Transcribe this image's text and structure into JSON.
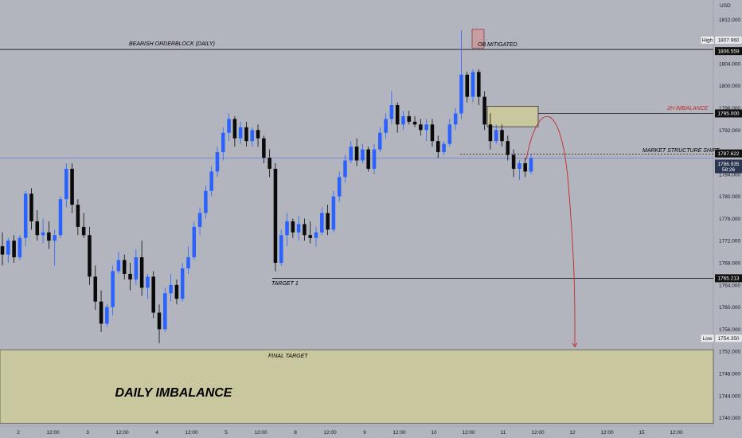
{
  "chart_data": {
    "type": "candlestick",
    "currency": "USD",
    "ylim": [
      1738.5,
      1815.5
    ],
    "y_ticks": [
      1812.0,
      1808.0,
      1804.0,
      1800.0,
      1796.0,
      1792.0,
      1788.0,
      1784.0,
      1780.0,
      1776.0,
      1772.0,
      1768.0,
      1764.0,
      1760.0,
      1756.0,
      1752.0,
      1748.0,
      1744.0,
      1740.0
    ],
    "x_tick_labels": [
      "2",
      "12:00",
      "3",
      "12:00",
      "4",
      "12:00",
      "5",
      "12:00",
      "8",
      "12:00",
      "9",
      "12:00",
      "10",
      "12:00",
      "11",
      "12:00",
      "12",
      "12:00",
      "15",
      "12:00"
    ],
    "price_labels": [
      {
        "tag": "High",
        "value": "1807.960"
      },
      {
        "tag": "",
        "value": "1806.559"
      },
      {
        "tag": "",
        "value": "1795.000"
      },
      {
        "tag": "",
        "value": "1787.622"
      },
      {
        "tag": "",
        "value": "1786.935",
        "sub": "58:26"
      },
      {
        "tag": "",
        "value": "1765.213"
      },
      {
        "tag": "Low",
        "value": "1754.350"
      }
    ],
    "annotations": {
      "bearish_ob": "BEARISH ORDERBLOCK (DAILY)",
      "ob_mitigated": "OB MITIGATED",
      "imbalance_2h": "2H IMBALANCE",
      "mss": "MARKET STRUCTURE SHIFT",
      "target1": "TARGET 1",
      "final_target": "FINAL TARGET",
      "daily_imbalance": "DAILY IMBALANCE"
    },
    "levels": {
      "bearish_ob": 1806.559,
      "imbalance_2h": 1795.0,
      "mss": 1787.622,
      "current": 1786.935,
      "target1": 1765.213,
      "final_target": 1752.3
    },
    "zones": {
      "daily_imbalance": [
        1739.0,
        1752.3
      ],
      "imbalance_2h": [
        1792.6,
        1796.3
      ],
      "ob_mitigated": [
        1806.8,
        1810.2
      ]
    },
    "projection_end": 1752.8,
    "series": [
      {
        "open": 1771.0,
        "high": 1773.5,
        "low": 1767.5,
        "close": 1769.5
      },
      {
        "open": 1769.5,
        "high": 1772.5,
        "low": 1768.0,
        "close": 1772.0
      },
      {
        "open": 1772.0,
        "high": 1773.0,
        "low": 1768.0,
        "close": 1769.0
      },
      {
        "open": 1769.0,
        "high": 1773.0,
        "low": 1768.5,
        "close": 1772.5
      },
      {
        "open": 1772.5,
        "high": 1781.0,
        "low": 1771.0,
        "close": 1780.5
      },
      {
        "open": 1780.5,
        "high": 1781.5,
        "low": 1774.0,
        "close": 1775.5
      },
      {
        "open": 1775.5,
        "high": 1777.5,
        "low": 1772.0,
        "close": 1773.0
      },
      {
        "open": 1773.0,
        "high": 1776.0,
        "low": 1771.5,
        "close": 1773.5
      },
      {
        "open": 1773.5,
        "high": 1775.5,
        "low": 1770.5,
        "close": 1772.0
      },
      {
        "open": 1772.0,
        "high": 1774.0,
        "low": 1767.5,
        "close": 1773.0
      },
      {
        "open": 1773.0,
        "high": 1780.0,
        "low": 1772.5,
        "close": 1779.5
      },
      {
        "open": 1779.5,
        "high": 1786.0,
        "low": 1778.0,
        "close": 1785.0
      },
      {
        "open": 1785.0,
        "high": 1786.0,
        "low": 1777.0,
        "close": 1778.5
      },
      {
        "open": 1778.5,
        "high": 1779.5,
        "low": 1773.0,
        "close": 1774.5
      },
      {
        "open": 1774.5,
        "high": 1777.0,
        "low": 1772.5,
        "close": 1773.0
      },
      {
        "open": 1773.0,
        "high": 1774.5,
        "low": 1764.0,
        "close": 1765.5
      },
      {
        "open": 1765.5,
        "high": 1767.5,
        "low": 1759.5,
        "close": 1761.0
      },
      {
        "open": 1761.0,
        "high": 1763.0,
        "low": 1755.5,
        "close": 1757.0
      },
      {
        "open": 1757.0,
        "high": 1760.5,
        "low": 1756.5,
        "close": 1760.0
      },
      {
        "open": 1760.0,
        "high": 1767.5,
        "low": 1758.5,
        "close": 1766.5
      },
      {
        "open": 1766.5,
        "high": 1770.0,
        "low": 1766.0,
        "close": 1768.5
      },
      {
        "open": 1768.5,
        "high": 1769.5,
        "low": 1765.0,
        "close": 1766.0
      },
      {
        "open": 1766.0,
        "high": 1768.0,
        "low": 1763.0,
        "close": 1765.0
      },
      {
        "open": 1765.0,
        "high": 1770.5,
        "low": 1764.0,
        "close": 1769.0
      },
      {
        "open": 1769.0,
        "high": 1772.0,
        "low": 1762.0,
        "close": 1763.5
      },
      {
        "open": 1763.5,
        "high": 1766.0,
        "low": 1761.5,
        "close": 1765.5
      },
      {
        "open": 1765.5,
        "high": 1766.5,
        "low": 1758.0,
        "close": 1759.0
      },
      {
        "open": 1759.0,
        "high": 1760.5,
        "low": 1753.5,
        "close": 1756.0
      },
      {
        "open": 1756.0,
        "high": 1763.5,
        "low": 1755.5,
        "close": 1762.5
      },
      {
        "open": 1762.5,
        "high": 1766.0,
        "low": 1761.0,
        "close": 1764.0
      },
      {
        "open": 1764.0,
        "high": 1765.0,
        "low": 1760.5,
        "close": 1761.5
      },
      {
        "open": 1761.5,
        "high": 1768.0,
        "low": 1761.0,
        "close": 1767.0
      },
      {
        "open": 1767.0,
        "high": 1771.0,
        "low": 1766.0,
        "close": 1769.0
      },
      {
        "open": 1769.0,
        "high": 1775.5,
        "low": 1768.5,
        "close": 1774.5
      },
      {
        "open": 1774.5,
        "high": 1778.0,
        "low": 1773.0,
        "close": 1777.0
      },
      {
        "open": 1777.0,
        "high": 1782.0,
        "low": 1776.0,
        "close": 1781.0
      },
      {
        "open": 1781.0,
        "high": 1785.5,
        "low": 1780.0,
        "close": 1784.5
      },
      {
        "open": 1784.5,
        "high": 1789.0,
        "low": 1783.5,
        "close": 1788.0
      },
      {
        "open": 1788.0,
        "high": 1792.5,
        "low": 1786.5,
        "close": 1791.5
      },
      {
        "open": 1791.5,
        "high": 1795.0,
        "low": 1790.0,
        "close": 1794.0
      },
      {
        "open": 1794.0,
        "high": 1794.5,
        "low": 1789.0,
        "close": 1790.5
      },
      {
        "open": 1790.5,
        "high": 1793.5,
        "low": 1789.5,
        "close": 1792.5
      },
      {
        "open": 1792.5,
        "high": 1793.5,
        "low": 1789.0,
        "close": 1790.0
      },
      {
        "open": 1790.0,
        "high": 1792.5,
        "low": 1789.0,
        "close": 1792.0
      },
      {
        "open": 1792.0,
        "high": 1793.0,
        "low": 1789.0,
        "close": 1790.5
      },
      {
        "open": 1790.5,
        "high": 1791.0,
        "low": 1786.0,
        "close": 1787.0
      },
      {
        "open": 1787.0,
        "high": 1788.5,
        "low": 1783.5,
        "close": 1785.0
      },
      {
        "open": 1785.0,
        "high": 1786.0,
        "low": 1766.5,
        "close": 1768.0
      },
      {
        "open": 1768.0,
        "high": 1774.0,
        "low": 1767.5,
        "close": 1773.0
      },
      {
        "open": 1773.0,
        "high": 1777.0,
        "low": 1771.0,
        "close": 1775.5
      },
      {
        "open": 1775.5,
        "high": 1776.0,
        "low": 1772.5,
        "close": 1773.5
      },
      {
        "open": 1773.5,
        "high": 1776.5,
        "low": 1772.0,
        "close": 1775.0
      },
      {
        "open": 1775.0,
        "high": 1776.0,
        "low": 1772.0,
        "close": 1773.0
      },
      {
        "open": 1773.0,
        "high": 1775.5,
        "low": 1771.5,
        "close": 1772.5
      },
      {
        "open": 1772.5,
        "high": 1774.5,
        "low": 1771.0,
        "close": 1773.5
      },
      {
        "open": 1773.5,
        "high": 1778.0,
        "low": 1773.0,
        "close": 1777.0
      },
      {
        "open": 1777.0,
        "high": 1778.5,
        "low": 1773.0,
        "close": 1774.0
      },
      {
        "open": 1774.0,
        "high": 1781.0,
        "low": 1773.5,
        "close": 1780.0
      },
      {
        "open": 1780.0,
        "high": 1784.5,
        "low": 1779.0,
        "close": 1783.5
      },
      {
        "open": 1783.5,
        "high": 1787.5,
        "low": 1782.5,
        "close": 1786.5
      },
      {
        "open": 1786.5,
        "high": 1790.0,
        "low": 1786.0,
        "close": 1789.0
      },
      {
        "open": 1789.0,
        "high": 1790.5,
        "low": 1785.5,
        "close": 1786.5
      },
      {
        "open": 1786.5,
        "high": 1789.5,
        "low": 1786.0,
        "close": 1788.5
      },
      {
        "open": 1788.5,
        "high": 1789.0,
        "low": 1784.5,
        "close": 1785.0
      },
      {
        "open": 1785.0,
        "high": 1789.5,
        "low": 1784.0,
        "close": 1788.5
      },
      {
        "open": 1788.5,
        "high": 1792.5,
        "low": 1788.0,
        "close": 1791.5
      },
      {
        "open": 1791.5,
        "high": 1795.0,
        "low": 1790.5,
        "close": 1794.0
      },
      {
        "open": 1794.0,
        "high": 1799.0,
        "low": 1793.0,
        "close": 1796.5
      },
      {
        "open": 1796.5,
        "high": 1797.0,
        "low": 1791.5,
        "close": 1793.0
      },
      {
        "open": 1793.0,
        "high": 1795.5,
        "low": 1792.0,
        "close": 1794.5
      },
      {
        "open": 1794.5,
        "high": 1795.5,
        "low": 1793.0,
        "close": 1793.5
      },
      {
        "open": 1793.5,
        "high": 1794.5,
        "low": 1792.5,
        "close": 1793.0
      },
      {
        "open": 1793.0,
        "high": 1794.0,
        "low": 1791.0,
        "close": 1792.0
      },
      {
        "open": 1792.0,
        "high": 1794.0,
        "low": 1790.0,
        "close": 1793.0
      },
      {
        "open": 1793.0,
        "high": 1794.0,
        "low": 1789.0,
        "close": 1790.0
      },
      {
        "open": 1790.0,
        "high": 1791.0,
        "low": 1787.0,
        "close": 1788.0
      },
      {
        "open": 1788.0,
        "high": 1790.0,
        "low": 1787.5,
        "close": 1789.5
      },
      {
        "open": 1789.5,
        "high": 1794.0,
        "low": 1789.0,
        "close": 1793.0
      },
      {
        "open": 1793.0,
        "high": 1796.0,
        "low": 1792.0,
        "close": 1795.0
      },
      {
        "open": 1795.0,
        "high": 1810.0,
        "low": 1794.0,
        "close": 1802.0
      },
      {
        "open": 1802.0,
        "high": 1802.5,
        "low": 1797.0,
        "close": 1798.0
      },
      {
        "open": 1798.0,
        "high": 1803.0,
        "low": 1797.0,
        "close": 1802.5
      },
      {
        "open": 1802.5,
        "high": 1803.0,
        "low": 1796.5,
        "close": 1798.0
      },
      {
        "open": 1798.0,
        "high": 1799.0,
        "low": 1792.0,
        "close": 1793.0
      },
      {
        "open": 1793.0,
        "high": 1795.0,
        "low": 1788.5,
        "close": 1790.0
      },
      {
        "open": 1790.0,
        "high": 1793.0,
        "low": 1789.5,
        "close": 1792.0
      },
      {
        "open": 1792.0,
        "high": 1793.0,
        "low": 1789.0,
        "close": 1790.0
      },
      {
        "open": 1790.0,
        "high": 1791.0,
        "low": 1786.5,
        "close": 1787.5
      },
      {
        "open": 1787.5,
        "high": 1788.5,
        "low": 1783.5,
        "close": 1785.0
      },
      {
        "open": 1785.0,
        "high": 1786.5,
        "low": 1783.0,
        "close": 1786.0
      },
      {
        "open": 1786.0,
        "high": 1787.0,
        "low": 1783.5,
        "close": 1784.5
      },
      {
        "open": 1784.5,
        "high": 1787.5,
        "low": 1784.0,
        "close": 1786.9
      }
    ]
  }
}
